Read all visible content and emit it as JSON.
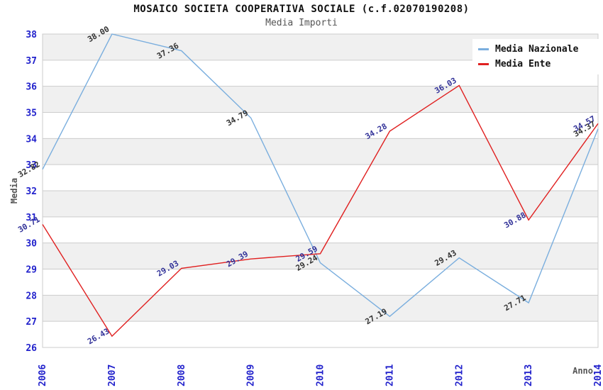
{
  "chart_data": {
    "type": "line",
    "title": "MOSAICO SOCIETA COOPERATIVA SOCIALE (c.f.02070190208)",
    "subtitle": "Media Importi",
    "xlabel": "Anno",
    "ylabel": "Media",
    "categories": [
      "2006",
      "2007",
      "2008",
      "2009",
      "2010",
      "2011",
      "2012",
      "2013",
      "2014"
    ],
    "series": [
      {
        "name": "Media Nazionale",
        "color": "#7aaede",
        "label_color": "#333333",
        "values": [
          32.82,
          38.0,
          37.36,
          34.79,
          29.24,
          27.19,
          29.43,
          27.71,
          34.37
        ]
      },
      {
        "name": "Media Ente",
        "color": "#e02020",
        "label_color": "#333399",
        "values": [
          30.71,
          26.43,
          29.03,
          29.39,
          29.59,
          34.28,
          36.03,
          30.88,
          34.57
        ]
      }
    ],
    "ylim": [
      26,
      38
    ],
    "ytick_step": 1,
    "grid": true,
    "legend_position": "top-right",
    "colors": {
      "tick_label": "#2222cc",
      "axis_title": "#555555",
      "gridline": "#cccccc",
      "stripe": "#f0f0f0",
      "plot_border": "#cccccc",
      "title": "#111111",
      "subtitle": "#555555",
      "legend_text": "#111111",
      "background": "#ffffff"
    }
  }
}
